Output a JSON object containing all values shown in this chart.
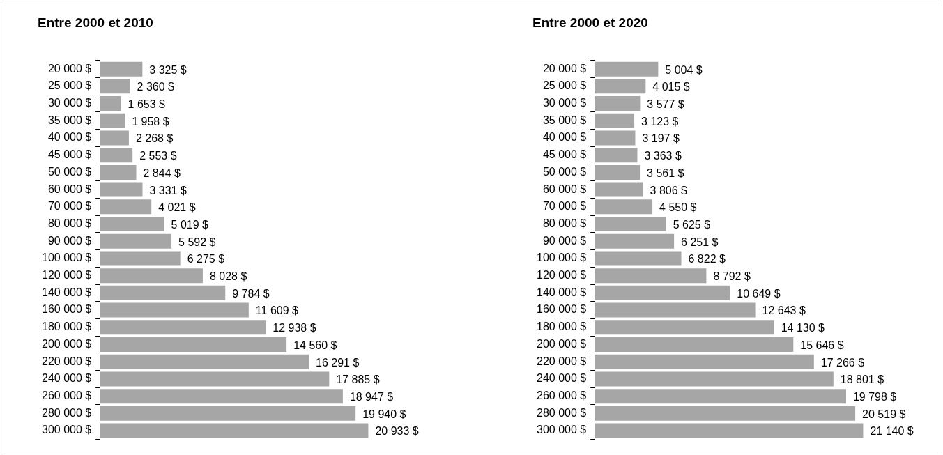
{
  "chart_data": [
    {
      "type": "bar",
      "orientation": "horizontal",
      "title": "Entre 2000 et 2010",
      "legend": false,
      "grid": false,
      "categories": [
        "20 000 $",
        "25 000 $",
        "30 000 $",
        "35 000 $",
        "40 000 $",
        "45 000 $",
        "50 000 $",
        "60 000 $",
        "70 000 $",
        "80 000 $",
        "90 000 $",
        "100 000 $",
        "120 000 $",
        "140 000 $",
        "160 000 $",
        "180 000 $",
        "200 000 $",
        "220 000 $",
        "240 000 $",
        "260 000 $",
        "280 000 $",
        "300 000 $"
      ],
      "values": [
        3325,
        2360,
        1653,
        1958,
        2268,
        2553,
        2844,
        3331,
        4021,
        5019,
        5592,
        6275,
        8028,
        9784,
        11609,
        12938,
        14560,
        16291,
        17885,
        18947,
        19940,
        20933
      ],
      "value_labels": [
        "3 325 $",
        "2 360 $",
        "1 653 $",
        "1 958 $",
        "2 268 $",
        "2 553 $",
        "2 844 $",
        "3 331 $",
        "4 021 $",
        "5 019 $",
        "5 592 $",
        "6 275 $",
        "8 028 $",
        "9 784 $",
        "11 609 $",
        "12 938 $",
        "14 560 $",
        "16 291 $",
        "17 885 $",
        "18 947 $",
        "19 940 $",
        "20 933 $"
      ],
      "color": "#a6a6a6"
    },
    {
      "type": "bar",
      "orientation": "horizontal",
      "title": "Entre 2000 et 2020",
      "legend": false,
      "grid": false,
      "categories": [
        "20 000 $",
        "25 000 $",
        "30 000 $",
        "35 000 $",
        "40 000 $",
        "45 000 $",
        "50 000 $",
        "60 000 $",
        "70 000 $",
        "80 000 $",
        "90 000 $",
        "100 000 $",
        "120 000 $",
        "140 000 $",
        "160 000 $",
        "180 000 $",
        "200 000 $",
        "220 000 $",
        "240 000 $",
        "260 000 $",
        "280 000 $",
        "300 000 $"
      ],
      "values": [
        5004,
        4015,
        3577,
        3123,
        3197,
        3363,
        3561,
        3806,
        4550,
        5625,
        6251,
        6822,
        8792,
        10649,
        12643,
        14130,
        15646,
        17266,
        18801,
        19798,
        20519,
        21140
      ],
      "value_labels": [
        "5 004 $",
        "4 015 $",
        "3 577 $",
        "3 123 $",
        "3 197 $",
        "3 363 $",
        "3 561 $",
        "3 806 $",
        "4 550 $",
        "5 625 $",
        "6 251 $",
        "6 822 $",
        "8 792 $",
        "10 649 $",
        "12 643 $",
        "14 130 $",
        "15 646 $",
        "17 266 $",
        "18 801 $",
        "19 798 $",
        "20 519 $",
        "21 140 $"
      ],
      "color": "#a6a6a6"
    }
  ]
}
